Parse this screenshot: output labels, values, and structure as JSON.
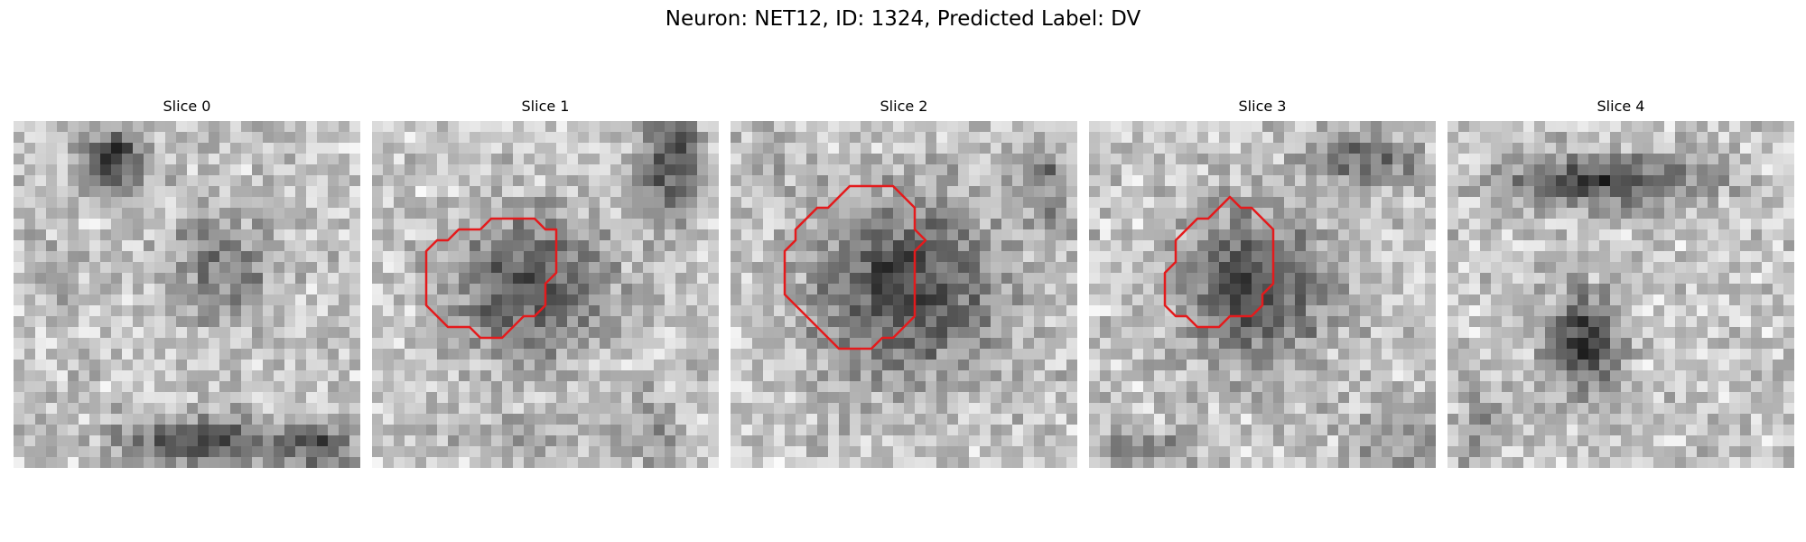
{
  "figure": {
    "title": "Neuron: NET12, ID: 1324, Predicted Label: DV"
  },
  "panels": [
    {
      "title": "Slice 0",
      "has_contour": false
    },
    {
      "title": "Slice 1",
      "has_contour": true
    },
    {
      "title": "Slice 2",
      "has_contour": true
    },
    {
      "title": "Slice 3",
      "has_contour": true
    },
    {
      "title": "Slice 4",
      "has_contour": false
    }
  ],
  "colors": {
    "contour": "#e41a1c",
    "background": "#ffffff"
  }
}
